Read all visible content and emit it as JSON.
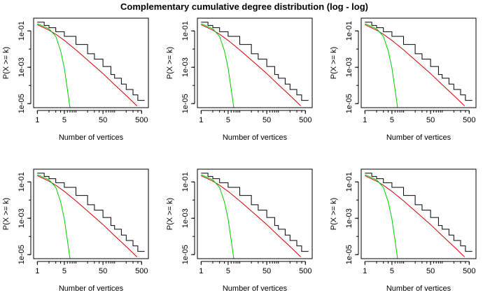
{
  "title": "Complementary cumulative degree distribution (log - log)",
  "colors": {
    "empirical": "#000000",
    "power_law": "#cc0000",
    "poisson": "#00cc00",
    "background": "#ffffff"
  },
  "chart_data": [
    {
      "type": "line",
      "panel": 1,
      "xlabel": "Number of vertices",
      "ylabel": "P(X >= k)",
      "xscale": "log",
      "yscale": "log",
      "xlim": [
        0.8,
        750
      ],
      "ylim": [
        6e-06,
        0.5
      ],
      "xticks": [
        1,
        5,
        50,
        500
      ],
      "xtick_labels": [
        "1",
        "5",
        "50",
        "500"
      ],
      "yticks": [
        0.1,
        0.001,
        1e-05
      ],
      "ytick_labels": [
        "1e-01",
        "1e-03",
        "1e-05"
      ],
      "series": [
        {
          "x": [
            1,
            1.5,
            2,
            3,
            5,
            10,
            20,
            30,
            50,
            80,
            100,
            150,
            200,
            300,
            400,
            600
          ],
          "y": [
            0.3,
            0.2,
            0.15,
            0.09,
            0.05,
            0.018,
            0.0055,
            0.0028,
            0.0011,
            0.0004,
            0.00025,
            0.00012,
            6e-05,
            3e-05,
            1.5e-05,
            1.5e-05
          ]
        },
        {
          "x": [
            1,
            2,
            3,
            5,
            10,
            20,
            50,
            100,
            200,
            380
          ],
          "y": [
            0.22,
            0.11,
            0.065,
            0.03,
            0.009,
            0.0025,
            0.00045,
            0.00011,
            2.8e-05,
            7.5e-06
          ]
        },
        {
          "x": [
            1,
            2,
            3,
            4,
            5,
            6,
            7
          ],
          "y": [
            0.25,
            0.13,
            0.05,
            0.008,
            0.0009,
            6e-05,
            6e-06
          ]
        }
      ]
    },
    {
      "type": "line",
      "panel": 2,
      "xlabel": "Number of vertices",
      "ylabel": "P(X >= k)",
      "xscale": "log",
      "yscale": "log",
      "xlim": [
        0.8,
        750
      ],
      "ylim": [
        6e-06,
        0.5
      ],
      "xticks": [
        1,
        5,
        50,
        500
      ],
      "xtick_labels": [
        "1",
        "5",
        "50",
        "500"
      ],
      "yticks": [
        0.1,
        0.001,
        1e-05
      ],
      "ytick_labels": [
        "1e-01",
        "1e-03",
        "1e-05"
      ],
      "series": [
        {
          "x": [
            1,
            1.5,
            2,
            3,
            5,
            10,
            20,
            30,
            50,
            80,
            100,
            150,
            200,
            300,
            400,
            600
          ],
          "y": [
            0.3,
            0.2,
            0.15,
            0.09,
            0.05,
            0.018,
            0.0055,
            0.0028,
            0.0011,
            0.0004,
            0.00025,
            0.00012,
            6e-05,
            3e-05,
            1.5e-05,
            1.5e-05
          ]
        },
        {
          "x": [
            1,
            2,
            3,
            5,
            10,
            20,
            50,
            100,
            200,
            380
          ],
          "y": [
            0.22,
            0.11,
            0.065,
            0.03,
            0.009,
            0.0025,
            0.00045,
            0.00011,
            2.8e-05,
            7.5e-06
          ]
        },
        {
          "x": [
            1,
            2,
            3,
            4,
            5,
            6,
            7
          ],
          "y": [
            0.25,
            0.13,
            0.05,
            0.008,
            0.0009,
            6e-05,
            6e-06
          ]
        }
      ]
    },
    {
      "type": "line",
      "panel": 3,
      "xlabel": "Number of vertices",
      "ylabel": "P(X >= k)",
      "xscale": "log",
      "yscale": "log",
      "xlim": [
        0.8,
        750
      ],
      "ylim": [
        6e-06,
        0.5
      ],
      "xticks": [
        1,
        5,
        50,
        500
      ],
      "xtick_labels": [
        "1",
        "5",
        "50",
        "500"
      ],
      "yticks": [
        0.1,
        0.001,
        1e-05
      ],
      "ytick_labels": [
        "1e-01",
        "1e-03",
        "1e-05"
      ],
      "series": [
        {
          "x": [
            1,
            1.5,
            2,
            3,
            5,
            10,
            20,
            30,
            50,
            80,
            100,
            150,
            200,
            300,
            400,
            600
          ],
          "y": [
            0.3,
            0.2,
            0.15,
            0.09,
            0.05,
            0.018,
            0.0055,
            0.0028,
            0.0011,
            0.0004,
            0.00025,
            0.00012,
            6e-05,
            3e-05,
            1.5e-05,
            1.5e-05
          ]
        },
        {
          "x": [
            1,
            2,
            3,
            5,
            10,
            20,
            50,
            100,
            200,
            380
          ],
          "y": [
            0.22,
            0.11,
            0.065,
            0.03,
            0.009,
            0.0025,
            0.00045,
            0.00011,
            2.8e-05,
            7.5e-06
          ]
        },
        {
          "x": [
            1,
            2,
            3,
            4,
            5,
            6,
            7
          ],
          "y": [
            0.25,
            0.13,
            0.05,
            0.008,
            0.0009,
            6e-05,
            6e-06
          ]
        }
      ]
    },
    {
      "type": "line",
      "panel": 4,
      "xlabel": "Number of vertices",
      "ylabel": "P(X >= k)",
      "xscale": "log",
      "yscale": "log",
      "xlim": [
        0.8,
        750
      ],
      "ylim": [
        6e-06,
        0.5
      ],
      "xticks": [
        1,
        5,
        50,
        500
      ],
      "xtick_labels": [
        "1",
        "5",
        "50",
        "500"
      ],
      "yticks": [
        0.1,
        0.001,
        1e-05
      ],
      "ytick_labels": [
        "1e-01",
        "1e-03",
        "1e-05"
      ],
      "series": [
        {
          "x": [
            1,
            1.5,
            2,
            3,
            5,
            10,
            20,
            30,
            50,
            80,
            100,
            150,
            200,
            300,
            400,
            600
          ],
          "y": [
            0.3,
            0.2,
            0.15,
            0.09,
            0.05,
            0.018,
            0.0055,
            0.0028,
            0.0011,
            0.0004,
            0.00025,
            0.00012,
            6e-05,
            3e-05,
            1.5e-05,
            1.5e-05
          ]
        },
        {
          "x": [
            1,
            2,
            3,
            5,
            10,
            20,
            50,
            100,
            200,
            380
          ],
          "y": [
            0.22,
            0.11,
            0.065,
            0.03,
            0.009,
            0.0025,
            0.00045,
            0.00011,
            2.8e-05,
            7.5e-06
          ]
        },
        {
          "x": [
            1,
            2,
            3,
            4,
            5,
            6,
            7
          ],
          "y": [
            0.25,
            0.13,
            0.05,
            0.008,
            0.0009,
            6e-05,
            6e-06
          ]
        }
      ]
    },
    {
      "type": "line",
      "panel": 5,
      "xlabel": "Number of vertices",
      "ylabel": "P(X >= k)",
      "xscale": "log",
      "yscale": "log",
      "xlim": [
        0.8,
        750
      ],
      "ylim": [
        6e-06,
        0.5
      ],
      "xticks": [
        1,
        5,
        50,
        500
      ],
      "xtick_labels": [
        "1",
        "5",
        "50",
        "500"
      ],
      "yticks": [
        0.1,
        0.001,
        1e-05
      ],
      "ytick_labels": [
        "1e-01",
        "1e-03",
        "1e-05"
      ],
      "series": [
        {
          "x": [
            1,
            1.5,
            2,
            3,
            5,
            10,
            20,
            30,
            50,
            80,
            100,
            150,
            200,
            300,
            400,
            600
          ],
          "y": [
            0.3,
            0.2,
            0.15,
            0.09,
            0.05,
            0.018,
            0.0055,
            0.0028,
            0.0011,
            0.0004,
            0.00025,
            0.00012,
            6e-05,
            3e-05,
            1.5e-05,
            1.5e-05
          ]
        },
        {
          "x": [
            1,
            2,
            3,
            5,
            10,
            20,
            50,
            100,
            200,
            380
          ],
          "y": [
            0.22,
            0.11,
            0.065,
            0.03,
            0.009,
            0.0025,
            0.00045,
            0.00011,
            2.8e-05,
            7.5e-06
          ]
        },
        {
          "x": [
            1,
            2,
            3,
            4,
            5,
            6,
            7
          ],
          "y": [
            0.25,
            0.13,
            0.05,
            0.008,
            0.0009,
            6e-05,
            6e-06
          ]
        }
      ]
    },
    {
      "type": "line",
      "panel": 6,
      "xlabel": "Number of vertices",
      "ylabel": "P(X >= k)",
      "xscale": "log",
      "yscale": "log",
      "xlim": [
        0.8,
        750
      ],
      "ylim": [
        6e-06,
        0.5
      ],
      "xticks": [
        1,
        5,
        50,
        500
      ],
      "xtick_labels": [
        "1",
        "5",
        "50",
        "500"
      ],
      "yticks": [
        0.1,
        0.001,
        1e-05
      ],
      "ytick_labels": [
        "1e-01",
        "1e-03",
        "1e-05"
      ],
      "series": [
        {
          "x": [
            1,
            1.5,
            2,
            3,
            5,
            10,
            20,
            30,
            50,
            80,
            100,
            150,
            200,
            300,
            400,
            600
          ],
          "y": [
            0.3,
            0.2,
            0.15,
            0.09,
            0.05,
            0.018,
            0.0055,
            0.0028,
            0.0011,
            0.0004,
            0.00025,
            0.00012,
            6e-05,
            3e-05,
            1.5e-05,
            1.5e-05
          ]
        },
        {
          "x": [
            1,
            2,
            3,
            5,
            10,
            20,
            50,
            100,
            200,
            380
          ],
          "y": [
            0.22,
            0.11,
            0.065,
            0.03,
            0.009,
            0.0025,
            0.00045,
            0.00011,
            2.8e-05,
            7.5e-06
          ]
        },
        {
          "x": [
            1,
            2,
            3,
            4,
            5,
            6,
            7
          ],
          "y": [
            0.25,
            0.13,
            0.05,
            0.008,
            0.0009,
            6e-05,
            6e-06
          ]
        }
      ]
    }
  ]
}
